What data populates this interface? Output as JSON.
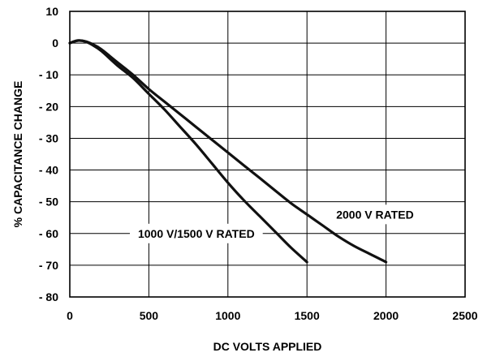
{
  "chart_data": {
    "type": "line",
    "xlabel": "DC VOLTS APPLIED",
    "ylabel": "% CAPACITANCE CHANGE",
    "xlim": [
      0,
      2500
    ],
    "ylim": [
      -80,
      10
    ],
    "x_ticks": [
      0,
      500,
      1000,
      1500,
      2000,
      2500
    ],
    "x_tick_labels": [
      "0",
      "500",
      "1000",
      "1500",
      "2000",
      "2500"
    ],
    "y_ticks": [
      10,
      0,
      -10,
      -20,
      -30,
      -40,
      -50,
      -60,
      -70,
      -80
    ],
    "y_tick_labels": [
      "10",
      "0",
      "- 10",
      "- 20",
      "- 30",
      "- 40",
      "- 50",
      "- 60",
      "- 70",
      "- 80"
    ],
    "grid": true,
    "colors": {
      "line": "#111111",
      "grid": "#000000",
      "axis": "#000000"
    },
    "series": [
      {
        "name": "1000 V/1500 V RATED",
        "x": [
          0,
          50,
          100,
          150,
          200,
          300,
          400,
          500,
          600,
          700,
          800,
          900,
          1000,
          1100,
          1200,
          1300,
          1400,
          1500
        ],
        "y": [
          0,
          0.8,
          0.5,
          -0.8,
          -2.5,
          -7,
          -11,
          -16,
          -21,
          -26.5,
          -32,
          -38,
          -44,
          -49.5,
          -54.5,
          -59.5,
          -64.5,
          -69
        ]
      },
      {
        "name": "2000 V RATED",
        "x": [
          0,
          50,
          100,
          150,
          200,
          300,
          400,
          500,
          600,
          700,
          800,
          900,
          1000,
          1100,
          1200,
          1300,
          1400,
          1500,
          1600,
          1700,
          1800,
          1900,
          2000
        ],
        "y": [
          0,
          0.8,
          0.5,
          -0.5,
          -2,
          -6,
          -10,
          -14.5,
          -18.5,
          -22.5,
          -26.5,
          -30.5,
          -34.5,
          -38.5,
          -42.5,
          -46.5,
          -50.5,
          -54,
          -57.5,
          -61,
          -64,
          -66.5,
          -69
        ]
      }
    ],
    "annotations": [
      {
        "text": "1000 V/1500 V RATED",
        "x": 800,
        "y": -60,
        "series_index": 0
      },
      {
        "text": "2000 V RATED",
        "x": 1930,
        "y": -54,
        "series_index": 1
      }
    ]
  }
}
